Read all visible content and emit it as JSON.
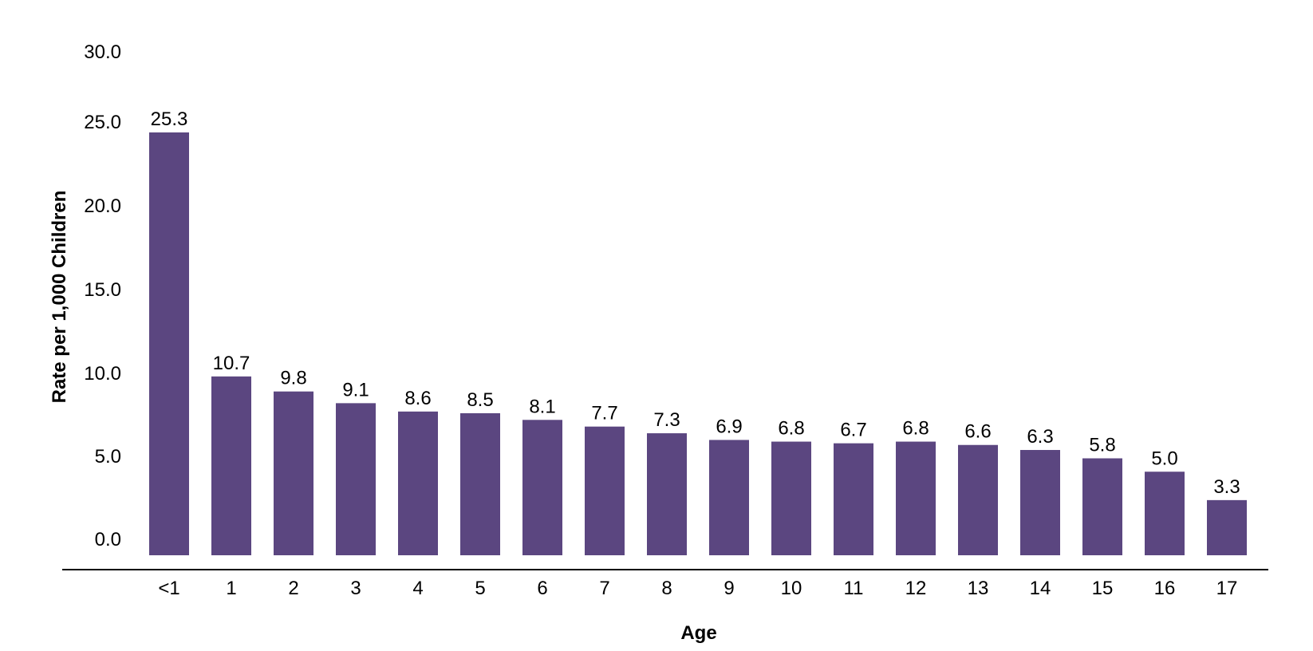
{
  "chart_data": {
    "type": "bar",
    "title": "",
    "xlabel": "Age",
    "ylabel": "Rate per 1,000 Children",
    "categories": [
      "<1",
      "1",
      "2",
      "3",
      "4",
      "5",
      "6",
      "7",
      "8",
      "9",
      "10",
      "11",
      "12",
      "13",
      "14",
      "15",
      "16",
      "17"
    ],
    "values": [
      25.3,
      10.7,
      9.8,
      9.1,
      8.6,
      8.5,
      8.1,
      7.7,
      7.3,
      6.9,
      6.8,
      6.7,
      6.8,
      6.6,
      6.3,
      5.8,
      5.0,
      3.3
    ],
    "value_labels": [
      "25.3",
      "10.7",
      "9.8",
      "9.1",
      "8.6",
      "8.5",
      "8.1",
      "7.7",
      "7.3",
      "6.9",
      "6.8",
      "6.7",
      "6.8",
      "6.6",
      "6.3",
      "5.8",
      "5.0",
      "3.3"
    ],
    "ylim": [
      0,
      30
    ],
    "yticks": [
      0,
      5,
      10,
      15,
      20,
      25,
      30
    ],
    "ytick_labels": [
      "0.0",
      "5.0",
      "10.0",
      "15.0",
      "20.0",
      "25.0",
      "30.0"
    ],
    "grid": false,
    "legend": "none",
    "bar_color": "#5b4680"
  }
}
